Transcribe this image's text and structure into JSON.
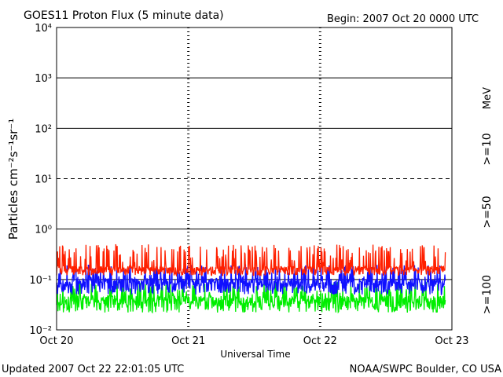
{
  "chart_data": {
    "type": "line",
    "title": "GOES11 Proton Flux (5 minute data)",
    "begin": "Begin: 2007 Oct 20 0000 UTC",
    "xlabel": "Universal Time",
    "ylabel": "Particles cm⁻²s⁻¹sr⁻¹",
    "units": "MeV",
    "x_ticks": [
      "Oct 20",
      "Oct 21",
      "Oct 22",
      "Oct 23"
    ],
    "y_ticks": [
      "10⁻²",
      "10⁻¹",
      "10⁰",
      "10¹",
      "10²",
      "10³",
      "10⁴"
    ],
    "ylim": [
      0.01,
      10000
    ],
    "yscale": "log",
    "xlim_days": [
      0,
      3
    ],
    "threshold_line": 10,
    "grid": true,
    "series": [
      {
        "name": ">=10",
        "color": "#ff2000",
        "base": 0.16,
        "low": 0.12,
        "high": 0.5
      },
      {
        "name": ">=50",
        "color": "#1010ff",
        "base": 0.085,
        "low": 0.05,
        "high": 0.2
      },
      {
        "name": ">=100",
        "color": "#00ee00",
        "base": 0.038,
        "low": 0.022,
        "high": 0.09
      }
    ],
    "data_end_day": 2.95
  },
  "footer": {
    "updated": "Updated 2007 Oct 22 22:01:05 UTC",
    "source": "NOAA/SWPC Boulder, CO USA"
  }
}
